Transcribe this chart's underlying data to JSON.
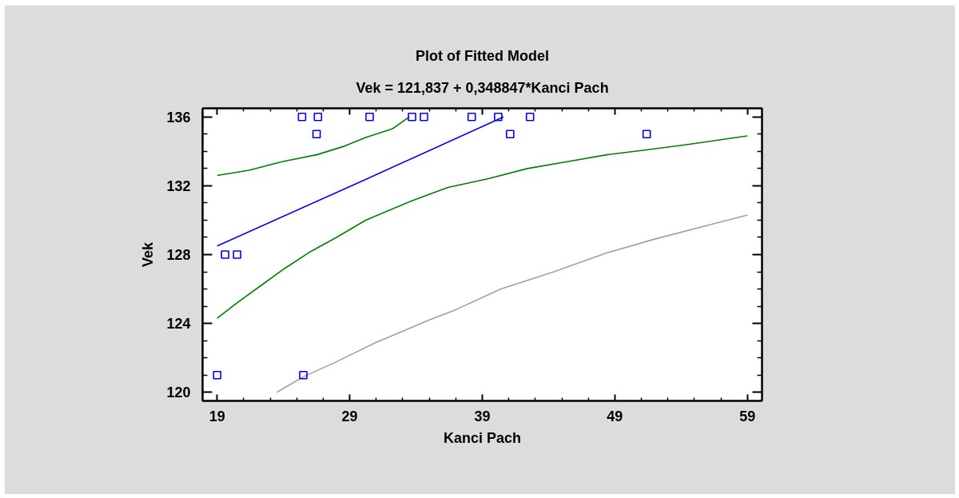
{
  "chart_data": {
    "type": "scatter",
    "title": "Plot of Fitted Model",
    "subtitle": "Vek = 121,837 + 0,348847*Kanci Pach",
    "xlabel": "Kanci Pach",
    "ylabel": "Vek",
    "xlim": [
      17.9,
      60.1
    ],
    "ylim": [
      119.5,
      136.5
    ],
    "xticks": [
      19,
      {
        "value": 21,
        "label": null
      },
      {
        "value": 23,
        "label": null
      },
      {
        "value": 25,
        "label": null
      },
      {
        "value": 27,
        "label": null
      },
      29,
      {
        "value": 31,
        "label": null
      },
      {
        "value": 33,
        "label": null
      },
      {
        "value": 35,
        "label": null
      },
      {
        "value": 37,
        "label": null
      },
      39,
      {
        "value": 41,
        "label": null
      },
      {
        "value": 43,
        "label": null
      },
      {
        "value": 45,
        "label": null
      },
      {
        "value": 47,
        "label": null
      },
      49,
      {
        "value": 51,
        "label": null
      },
      {
        "value": 53,
        "label": null
      },
      {
        "value": 55,
        "label": null
      },
      {
        "value": 57,
        "label": null
      },
      59
    ],
    "yticks": [
      120,
      {
        "value": 121,
        "label": null
      },
      {
        "value": 122,
        "label": null
      },
      {
        "value": 123,
        "label": null
      },
      124,
      {
        "value": 125,
        "label": null
      },
      {
        "value": 126,
        "label": null
      },
      {
        "value": 127,
        "label": null
      },
      128,
      {
        "value": 129,
        "label": null
      },
      {
        "value": 130,
        "label": null
      },
      {
        "value": 131,
        "label": null
      },
      132,
      {
        "value": 133,
        "label": null
      },
      {
        "value": 134,
        "label": null
      },
      {
        "value": 135,
        "label": null
      },
      136
    ],
    "series": [
      {
        "type": "line",
        "color": "#008000",
        "x": [
          19,
          21.4,
          23.9,
          26.5,
          28.6,
          30.2,
          32.2,
          33.5
        ],
        "values": [
          132.6,
          132.9,
          133.4,
          133.8,
          134.3,
          134.8,
          135.3,
          136
        ]
      },
      {
        "type": "line",
        "color": "#008000",
        "x": [
          19,
          20.5,
          22.3,
          24.1,
          26.1,
          28,
          30.2,
          33.6,
          36.4,
          39.4,
          42.4,
          45.4,
          48.4,
          51.5,
          54.5,
          59
        ],
        "values": [
          124.3,
          125.2,
          126.2,
          127.2,
          128.2,
          129.0,
          130.0,
          131.1,
          131.9,
          132.4,
          133.0,
          133.4,
          133.8,
          134.1,
          134.4,
          134.9
        ]
      },
      {
        "type": "line",
        "color": "#a0a0a0",
        "x": [
          23.5,
          25.5,
          27.8,
          31,
          35,
          37,
          40.4,
          44.4,
          48.4,
          52,
          56.5,
          59
        ],
        "values": [
          120,
          120.9,
          121.7,
          122.9,
          124.2,
          124.8,
          126.0,
          127.0,
          128.1,
          128.9,
          129.8,
          130.3
        ]
      },
      {
        "type": "line",
        "color": "#0000ff",
        "x": [
          19,
          30,
          40.6
        ],
        "values": [
          128.5,
          132.3,
          136.0
        ]
      },
      {
        "color": "#0000ff",
        "marker": "square",
        "x": [
          19,
          19.6,
          20.5,
          25.4,
          25.5,
          26.5,
          26.6,
          30.5,
          33.7,
          34.6,
          38.2,
          40.2,
          41.1,
          42.6,
          51.4
        ],
        "values": [
          121,
          128,
          128,
          136,
          121,
          135,
          136,
          136,
          136,
          136,
          136,
          136,
          135,
          136,
          135
        ]
      }
    ]
  }
}
